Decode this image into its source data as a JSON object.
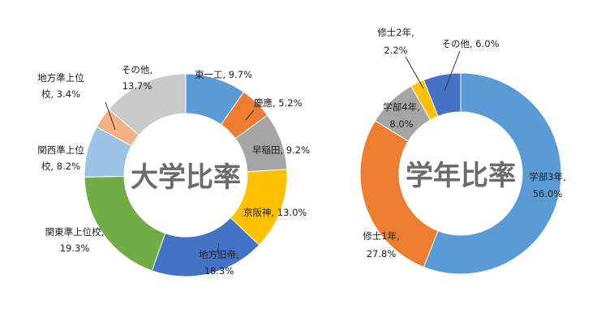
{
  "chart_data": [
    {
      "type": "pie",
      "donut": true,
      "title": "大学比率",
      "slices": [
        {
          "name": "東一工",
          "value": 9.7,
          "pct_label": "9.7%",
          "color": "#5b9bd5"
        },
        {
          "name": "慶應",
          "value": 5.2,
          "pct_label": "5.2%",
          "color": "#ed7d31"
        },
        {
          "name": "早稲田",
          "value": 9.2,
          "pct_label": "9.2%",
          "color": "#a5a5a5"
        },
        {
          "name": "京阪神",
          "value": 13.0,
          "pct_label": "13.0%",
          "color": "#ffc000"
        },
        {
          "name": "地方旧帝",
          "value": 18.3,
          "pct_label": "18.3%",
          "color": "#4472c4"
        },
        {
          "name": "関東準上位校",
          "value": 19.3,
          "pct_label": "19.3%",
          "color": "#70ad47"
        },
        {
          "name": "関西準上位校",
          "value": 8.2,
          "pct_label": "8.2%",
          "color": "#9dc3e6"
        },
        {
          "name": "地方準上位校",
          "value": 3.4,
          "pct_label": "3.4%",
          "color": "#f4b183"
        },
        {
          "name": "その他",
          "value": 13.7,
          "pct_label": "13.7%",
          "color": "#c9c9c9"
        }
      ]
    },
    {
      "type": "pie",
      "donut": true,
      "title": "学年比率",
      "slices": [
        {
          "name": "学部3年",
          "value": 56.0,
          "pct_label": "56.0%",
          "color": "#5b9bd5"
        },
        {
          "name": "修士1年",
          "value": 27.8,
          "pct_label": "27.8%",
          "color": "#ed7d31"
        },
        {
          "name": "学部4年",
          "value": 8.0,
          "pct_label": "8.0%",
          "color": "#a5a5a5"
        },
        {
          "name": "修士2年",
          "value": 2.2,
          "pct_label": "2.2%",
          "color": "#ffc000"
        },
        {
          "name": "その他",
          "value": 6.0,
          "pct_label": "6.0%",
          "color": "#4472c4"
        }
      ]
    }
  ],
  "labels": {
    "chart0": {
      "s0": "東一工, 9.7%",
      "s1": "慶應, 5.2%",
      "s2": "早稲田, 9.2%",
      "s3": "京阪神, 13.0%",
      "s4a": "地方旧帝,",
      "s4b": "18.3%",
      "s5a": "関東準上位校,",
      "s5b": "19.3%",
      "s6a": "関西準上位",
      "s6b": "校, 8.2%",
      "s7a": "地方準上位",
      "s7b": "校, 3.4%",
      "s8a": "その他,",
      "s8b": "13.7%"
    },
    "chart1": {
      "s0a": "学部3年,",
      "s0b": "56.0%",
      "s1a": "修士1年,",
      "s1b": "27.8%",
      "s2a": "学部4年,",
      "s2b": "8.0%",
      "s3a": "修士2年,",
      "s3b": "2.2%",
      "s4": "その他, 6.0%"
    }
  }
}
